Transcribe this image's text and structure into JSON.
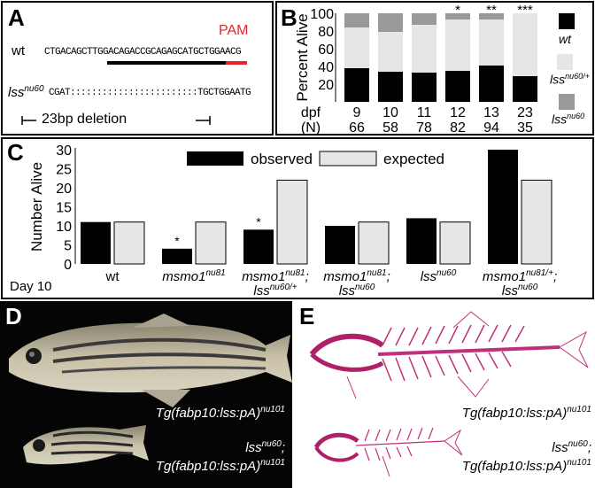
{
  "panelA": {
    "letter": "A",
    "pam": "PAM",
    "wt_label": "wt",
    "wt_seq": "CTGACAGCTTGGACAGACCGCAGAGCATGCTGGAACG",
    "mut_label": "lss",
    "mut_sup": "nu60",
    "mut_seq": "CGAT::::::::::::::::::::::::TGCTGGAATG",
    "deletion": "23bp deletion",
    "colors": {
      "pam": "#e8222b",
      "bar": "#000000"
    }
  },
  "panelB": {
    "letter": "B",
    "ylabel": "Percent Alive",
    "row1_label": "dpf",
    "row2_label": "(N)",
    "legend": [
      {
        "name": "wt",
        "sup": "",
        "color": "#000000"
      },
      {
        "name": "lss",
        "sup": "nu60/+",
        "color": "#e6e6e6"
      },
      {
        "name": "lss",
        "sup": "nu60",
        "color": "#999999"
      }
    ]
  },
  "panelC": {
    "letter": "C",
    "ylabel": "Number Alive",
    "day_label": "Day 10",
    "legend_observed": "observed",
    "legend_expected": "expected",
    "groups": [
      {
        "line1": "wt",
        "sup1": "",
        "line2": "",
        "sup2": ""
      },
      {
        "line1": "msmo1",
        "sup1": "nu81",
        "line2": "",
        "sup2": ""
      },
      {
        "line1": "msmo1",
        "sup1": "nu81",
        "line1b": ";",
        "line2": "lss",
        "sup2": "nu60/+"
      },
      {
        "line1": "msmo1",
        "sup1": "nu81",
        "line1b": ";",
        "line2": "lss",
        "sup2": "nu60"
      },
      {
        "line1": "lss",
        "sup1": "nu60",
        "line2": "",
        "sup2": ""
      },
      {
        "line1": "msmo1",
        "sup1": "nu81/+",
        "line1b": ";",
        "line2": "lss",
        "sup2": "nu60"
      }
    ]
  },
  "panelD": {
    "letter": "D",
    "caption1": "Tg(fabp10:lss:pA)",
    "caption1_sup": "nu101",
    "caption2a": "lss",
    "caption2a_sup": "nu60",
    "caption2b": "Tg(fabp10:lss:pA)",
    "caption2b_sup": "nu101"
  },
  "panelE": {
    "letter": "E",
    "caption1": "Tg(fabp10:lss:pA)",
    "caption1_sup": "nu101",
    "caption2a": "lss",
    "caption2a_sup": "nu60",
    "caption2b": "Tg(fabp10:lss:pA)",
    "caption2b_sup": "nu101"
  },
  "chart_data": [
    {
      "type": "bar",
      "stacked": true,
      "title": "",
      "ylabel": "Percent Alive",
      "ylim": [
        0,
        100
      ],
      "yticks": [
        20,
        40,
        60,
        80,
        100
      ],
      "categories": [
        "9",
        "10",
        "11",
        "12",
        "13",
        "23"
      ],
      "n": [
        "66",
        "58",
        "78",
        "82",
        "94",
        "35"
      ],
      "significance": [
        "",
        "",
        "",
        "*",
        "**",
        "***"
      ],
      "series": [
        {
          "name": "wt",
          "values": [
            38,
            34,
            33,
            35,
            41,
            29
          ]
        },
        {
          "name": "lssnu60/+",
          "values": [
            46,
            45,
            54,
            58,
            52,
            71
          ]
        },
        {
          "name": "lssnu60",
          "values": [
            16,
            21,
            13,
            7,
            7,
            0
          ]
        }
      ]
    },
    {
      "type": "bar",
      "title": "",
      "ylabel": "Number Alive",
      "ylim": [
        0,
        30
      ],
      "yticks": [
        0,
        5,
        10,
        15,
        20,
        25,
        30
      ],
      "categories": [
        "wt",
        "msmo1 nu81",
        "msmo1 nu81; lss nu60/+",
        "msmo1 nu81; lss nu60",
        "lss nu60",
        "msmo1 nu81/+; lss nu60"
      ],
      "significance": [
        "",
        "*",
        "*",
        "",
        "",
        ""
      ],
      "series": [
        {
          "name": "observed",
          "values": [
            11,
            4,
            9,
            10,
            12,
            30
          ]
        },
        {
          "name": "expected",
          "values": [
            11,
            11,
            22,
            11,
            11,
            22
          ]
        }
      ]
    }
  ]
}
